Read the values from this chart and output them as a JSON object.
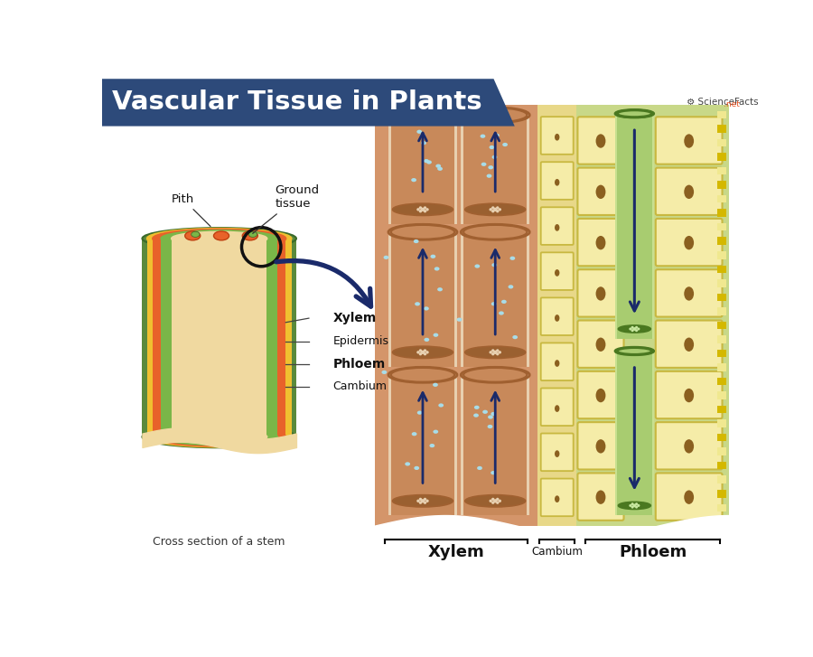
{
  "title": "Vascular Tissue in Plants",
  "title_bg_color": "#2d4a7a",
  "title_text_color": "#ffffff",
  "bg_color": "#ffffff",
  "fig_width": 9.0,
  "fig_height": 7.27,
  "left_panel": {
    "epidermis_color": "#5a8a3c",
    "cambium_color": "#f0c030",
    "xylem_color": "#e8622a",
    "phloem_color": "#7ab648",
    "pith_bg_color": "#f0d9a0"
  },
  "right_panel": {
    "xylem_bg": "#d4956a",
    "xylem_tube_fill": "#c8895a",
    "xylem_tube_edge": "#a06030",
    "xylem_plate_col": "#9a6030",
    "xylem_water_dot": "#a8dce8",
    "cambium_bg": "#e8d888",
    "cambium_cell_fill": "#f5eca8",
    "cambium_cell_border": "#c8b840",
    "cambium_nucleus": "#8b6020",
    "phloem_bg": "#c8d888",
    "phloem_cell_fill": "#f5eca8",
    "phloem_cell_border": "#c8b840",
    "phloem_nucleus": "#8b6020",
    "sieve_tube_fill": "#a8cc70",
    "sieve_tube_edge": "#4a7820",
    "sieve_plate_col": "#4a7820",
    "sieve_plate_fill": "#c8e8a0",
    "dashed_yellow": "#d4b800",
    "dashed_white": "#f0e890",
    "arrow_color": "#1a2a6a",
    "labels": {
      "xylem": "Xylem",
      "cambium": "Cambium",
      "phloem": "Phloem"
    }
  }
}
